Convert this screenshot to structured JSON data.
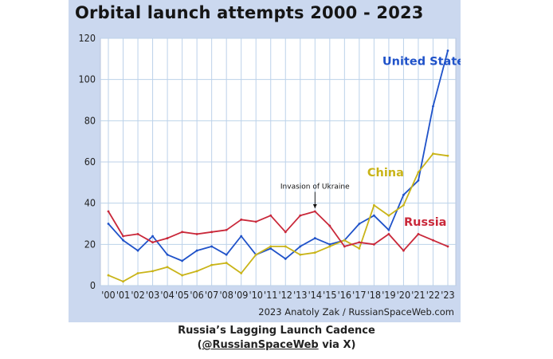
{
  "chart_data": {
    "type": "line",
    "title": "Orbital launch attempts 2000 - 2023",
    "xlabel": "",
    "ylabel": "",
    "ylim": [
      0,
      120
    ],
    "yticks": [
      0,
      20,
      40,
      60,
      80,
      100,
      120
    ],
    "grid": true,
    "categories": [
      "'00",
      "'01",
      "'02",
      "'03",
      "'04",
      "'05",
      "'06",
      "'07",
      "'08",
      "'09",
      "'10",
      "'11",
      "'12",
      "'13",
      "'14",
      "'15",
      "'16",
      "'17",
      "'18",
      "'19",
      "'20",
      "'21",
      "'22",
      "'23"
    ],
    "series": [
      {
        "name": "United States",
        "color": "#1f52c9",
        "values": [
          30,
          22,
          17,
          24,
          15,
          12,
          17,
          19,
          15,
          24,
          15,
          18,
          13,
          19,
          23,
          20,
          22,
          30,
          34,
          27,
          44,
          51,
          87,
          114
        ]
      },
      {
        "name": "China",
        "color": "#c9b418",
        "values": [
          5,
          2,
          6,
          7,
          9,
          5,
          7,
          10,
          11,
          6,
          15,
          19,
          19,
          15,
          16,
          19,
          22,
          18,
          39,
          34,
          39,
          55,
          64,
          63
        ]
      },
      {
        "name": "Russia",
        "color": "#c9283a",
        "values": [
          36,
          24,
          25,
          21,
          23,
          26,
          25,
          26,
          27,
          32,
          31,
          34,
          26,
          34,
          36,
          29,
          19,
          21,
          20,
          25,
          17,
          25,
          22,
          19
        ]
      }
    ],
    "annotations": [
      {
        "text": "Invasion of Ukraine",
        "x": "'14"
      }
    ]
  },
  "credit": "2023 Anatoly Zak / RussianSpaceWeb.com",
  "caption": {
    "line1": "Russia’s Lagging Launch Cadence",
    "line2_prefix": "(",
    "handle": "@RussianSpaceWeb",
    "line2_suffix": " via X)"
  }
}
